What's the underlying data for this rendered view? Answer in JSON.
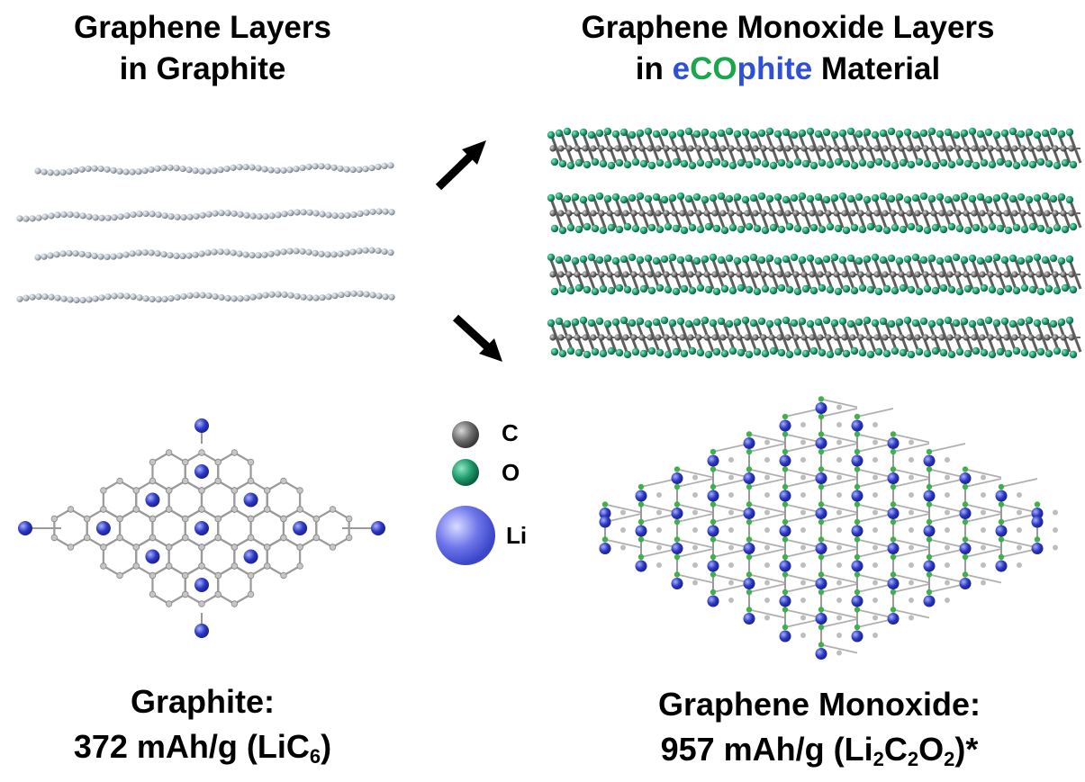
{
  "left_title": {
    "line1": "Graphene Layers",
    "line2": "in Graphite"
  },
  "right_title": {
    "line1": "Graphene Monoxide Layers",
    "line2_pre": "in ",
    "brand_part1": "e",
    "brand_part2": "CO",
    "brand_part3": "phite",
    "line2_post": " Material"
  },
  "legend": {
    "carbon_label": "C",
    "oxygen_label": "O",
    "lithium_label": "Li"
  },
  "left_caption": {
    "line1": "Graphite:",
    "line2_pre": "372 mAh/g (LiC",
    "sub1": "6",
    "line2_post": ")"
  },
  "right_caption": {
    "line1": "Graphene Monoxide:",
    "line2_pre": "957 mAh/g (Li",
    "sub1": "2",
    "mid1": "C",
    "sub2": "2",
    "mid2": "O",
    "sub3": "2",
    "line2_post": ")*"
  },
  "colors": {
    "brand_blue": "#2f4fd6",
    "brand_green": "#1aa64a",
    "carbon_gray": "#6b6b6b",
    "oxygen_green": "#1d9a6c",
    "lithium_blue": "#3a45c8",
    "graphene_light": "#b8bec6"
  },
  "icons": [
    "arrow-up-right-icon",
    "arrow-down-right-icon",
    "carbon-atom-icon",
    "oxygen-atom-icon",
    "lithium-atom-icon"
  ]
}
